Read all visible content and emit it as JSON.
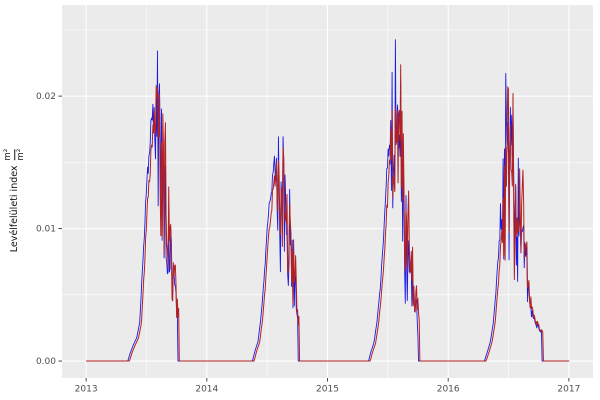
{
  "chart_data": {
    "type": "line",
    "title": "",
    "ylabel_text": "Levélfelületi index",
    "ylabel_unit_numerator": "m²",
    "ylabel_unit_denominator": "m²",
    "x_ticks": [
      "2013",
      "2014",
      "2015",
      "2016",
      "2017"
    ],
    "x_tick_values": [
      2013,
      2014,
      2015,
      2016,
      2017
    ],
    "x_minor_values": [
      2013.5,
      2014.5,
      2015.5,
      2016.5
    ],
    "y_ticks": [
      "0.00",
      "0.01",
      "0.02"
    ],
    "y_tick_values": [
      0,
      0.01,
      0.02
    ],
    "y_minor_values": [
      0.005,
      0.015,
      0.025
    ],
    "xlim": [
      2012.8,
      2017.2
    ],
    "ylim": [
      -0.00128,
      0.02688
    ],
    "grid": true,
    "legend": false,
    "panel_bg": "#EBEBEB",
    "grid_color": "#FFFFFF",
    "tick_mark_color": "#333333",
    "tick_label_color": "#4D4D4D",
    "series": [
      {
        "name": "series-blue",
        "color": "#1A1AE6",
        "width": 0.9,
        "time_shift_days": 0,
        "scale": 1.0,
        "seed": 7
      },
      {
        "name": "series-red",
        "color": "#B22222",
        "width": 1.0,
        "time_shift_days": 5,
        "scale": 0.97,
        "seed": 13
      }
    ],
    "seasons": [
      {
        "year": 2013,
        "peak_t": 0.605,
        "peak_value": 0.0256,
        "envelope": [
          [
            0.345,
            0
          ],
          [
            0.365,
            0.0006
          ],
          [
            0.39,
            0.0012
          ],
          [
            0.42,
            0.0018
          ],
          [
            0.445,
            0.003
          ],
          [
            0.465,
            0.007
          ],
          [
            0.49,
            0.012
          ],
          [
            0.515,
            0.0155
          ],
          [
            0.54,
            0.019
          ],
          [
            0.565,
            0.022
          ],
          [
            0.585,
            0.0245
          ],
          [
            0.605,
            0.0256
          ],
          [
            0.625,
            0.022
          ],
          [
            0.645,
            0.0185
          ],
          [
            0.665,
            0.0155
          ],
          [
            0.69,
            0.012
          ],
          [
            0.715,
            0.009
          ],
          [
            0.735,
            0.0065
          ],
          [
            0.752,
            0.0045
          ],
          [
            0.757,
            0.004
          ],
          [
            0.758,
            0
          ]
        ]
      },
      {
        "year": 2014,
        "peak_t": 0.615,
        "peak_value": 0.0205,
        "envelope": [
          [
            0.378,
            0
          ],
          [
            0.4,
            0.0008
          ],
          [
            0.425,
            0.0015
          ],
          [
            0.45,
            0.0035
          ],
          [
            0.47,
            0.006
          ],
          [
            0.495,
            0.0095
          ],
          [
            0.52,
            0.0125
          ],
          [
            0.545,
            0.0145
          ],
          [
            0.57,
            0.0165
          ],
          [
            0.595,
            0.0185
          ],
          [
            0.615,
            0.0205
          ],
          [
            0.635,
            0.0195
          ],
          [
            0.66,
            0.0175
          ],
          [
            0.685,
            0.015
          ],
          [
            0.705,
            0.0125
          ],
          [
            0.725,
            0.0095
          ],
          [
            0.742,
            0.006
          ],
          [
            0.752,
            0.0042
          ],
          [
            0.754,
            0
          ]
        ]
      },
      {
        "year": 2015,
        "peak_t": 0.555,
        "peak_value": 0.0253,
        "envelope": [
          [
            0.34,
            0
          ],
          [
            0.36,
            0.0007
          ],
          [
            0.385,
            0.0014
          ],
          [
            0.41,
            0.003
          ],
          [
            0.435,
            0.0055
          ],
          [
            0.46,
            0.009
          ],
          [
            0.485,
            0.0135
          ],
          [
            0.51,
            0.018
          ],
          [
            0.535,
            0.022
          ],
          [
            0.555,
            0.0253
          ],
          [
            0.59,
            0.0235
          ],
          [
            0.615,
            0.02
          ],
          [
            0.64,
            0.016
          ],
          [
            0.665,
            0.0125
          ],
          [
            0.69,
            0.0095
          ],
          [
            0.715,
            0.007
          ],
          [
            0.735,
            0.005
          ],
          [
            0.748,
            0.0035
          ],
          [
            0.75,
            0
          ]
        ]
      },
      {
        "year": 2016,
        "peak_t": 0.478,
        "peak_value": 0.0246,
        "envelope": [
          [
            0.3,
            0
          ],
          [
            0.325,
            0.0007
          ],
          [
            0.35,
            0.0015
          ],
          [
            0.375,
            0.003
          ],
          [
            0.4,
            0.006
          ],
          [
            0.425,
            0.01
          ],
          [
            0.45,
            0.016
          ],
          [
            0.465,
            0.021
          ],
          [
            0.478,
            0.0246
          ],
          [
            0.5,
            0.0235
          ],
          [
            0.52,
            0.0225
          ],
          [
            0.545,
            0.019
          ],
          [
            0.565,
            0.0175
          ],
          [
            0.585,
            0.019
          ],
          [
            0.605,
            0.016
          ],
          [
            0.625,
            0.0125
          ],
          [
            0.645,
            0.009
          ],
          [
            0.665,
            0.006
          ],
          [
            0.69,
            0.0042
          ],
          [
            0.72,
            0.0032
          ],
          [
            0.755,
            0.0027
          ],
          [
            0.773,
            0.0024
          ],
          [
            0.775,
            0
          ]
        ]
      }
    ],
    "noise": {
      "step_days": 2,
      "base_dip": 0.12,
      "max_dip": 0.78,
      "onset_before_peak": 0.055,
      "onset_ramp": 0.04,
      "shared_weight": 0.7,
      "bias_power": 1.4,
      "low_env_ratio": 0.35,
      "shared_seed": 42
    }
  }
}
